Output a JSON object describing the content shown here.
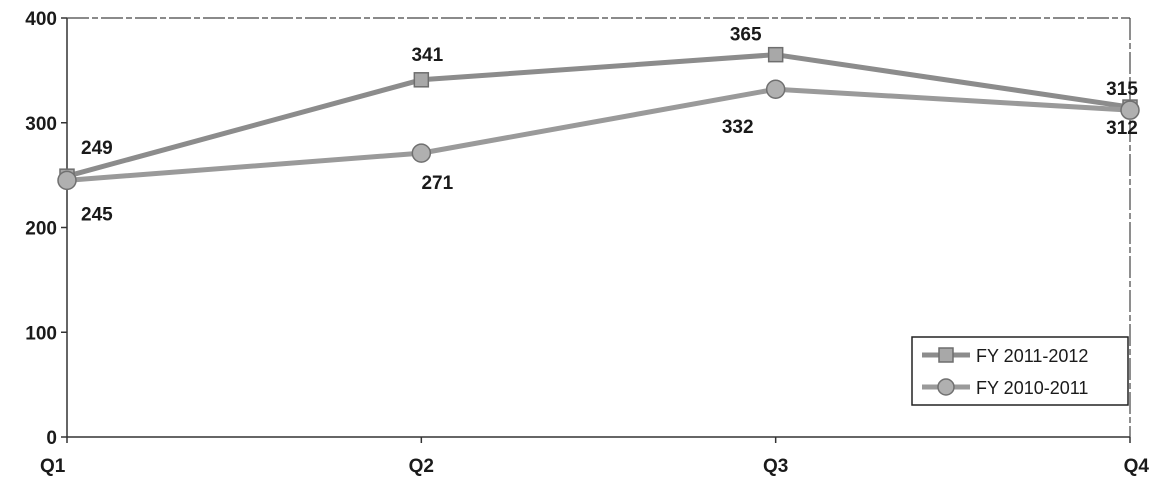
{
  "chart_data": {
    "type": "line",
    "categories": [
      "Q1",
      "Q2",
      "Q3",
      "Q4"
    ],
    "ylim": [
      0,
      400
    ],
    "yticks": [
      0,
      100,
      200,
      300,
      400
    ],
    "grid": false,
    "legend_position": "bottom-right",
    "series": [
      {
        "name": "FY 2011-2012",
        "values": [
          249,
          341,
          365,
          315
        ],
        "marker": "square",
        "color": "#8c8c8c"
      },
      {
        "name": "FY 2010-2011",
        "values": [
          245,
          271,
          332,
          312
        ],
        "marker": "circle",
        "color": "#9a9a9a"
      }
    ]
  }
}
